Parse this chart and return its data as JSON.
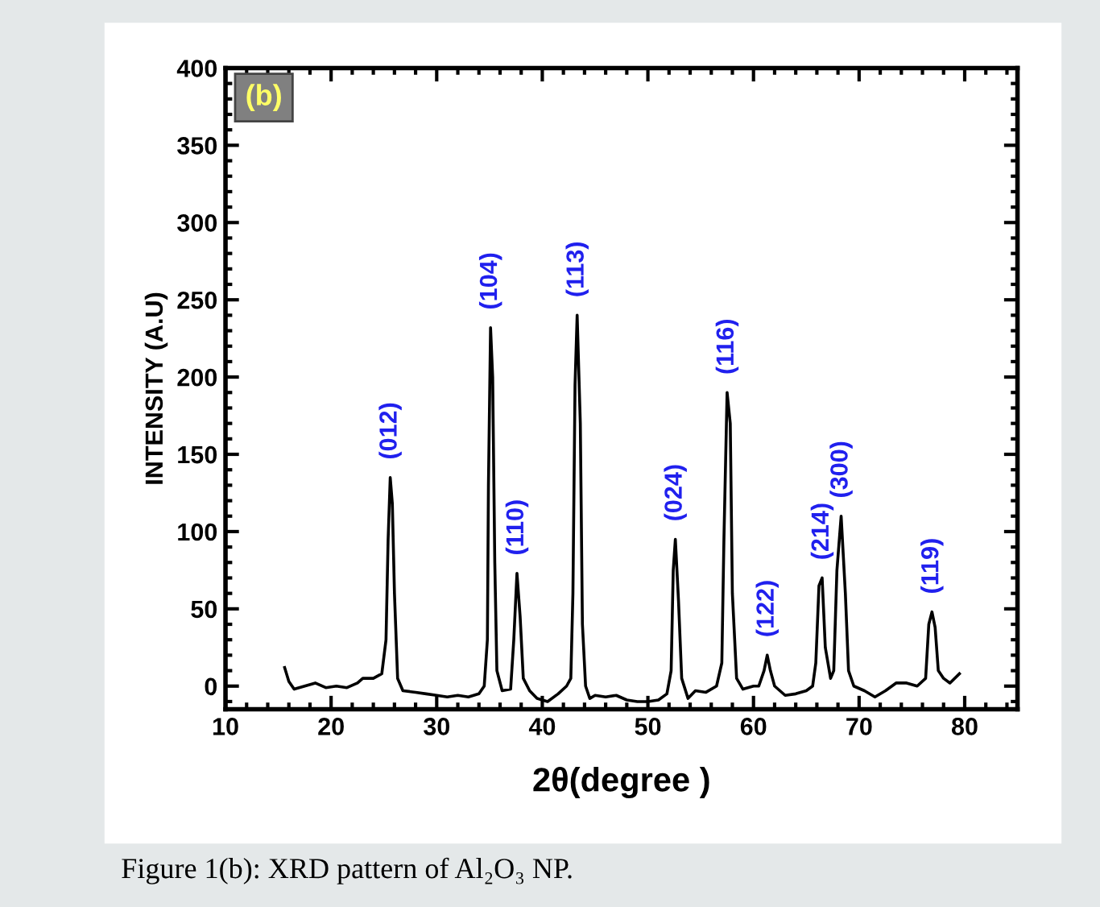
{
  "chart_data": {
    "type": "line",
    "xlabel": "2θ(degree )",
    "ylabel": "INTENSITY (A.U)",
    "xlim": [
      10,
      85
    ],
    "ylim": [
      -15,
      400
    ],
    "xticks": [
      10,
      20,
      30,
      40,
      50,
      60,
      70,
      80
    ],
    "yticks": [
      0,
      50,
      100,
      150,
      200,
      250,
      300,
      350,
      400
    ],
    "grid": false,
    "legend": false,
    "marker": "none",
    "line_style": "solid",
    "series": [
      {
        "color": "#000000",
        "x": [
          15.6,
          16.0,
          16.5,
          17.5,
          18.5,
          19.5,
          20.5,
          21.5,
          22.5,
          23.0,
          24.0,
          24.8,
          25.2,
          25.4,
          25.6,
          25.8,
          26.0,
          26.3,
          26.8,
          28,
          29,
          30,
          31,
          32,
          33,
          34,
          34.5,
          34.8,
          34.9,
          35.1,
          35.3,
          35.5,
          35.7,
          36.2,
          37.0,
          37.3,
          37.6,
          37.9,
          38.2,
          38.8,
          39.5,
          40.5,
          41.5,
          42.3,
          42.7,
          42.9,
          43.1,
          43.3,
          43.6,
          43.8,
          44.1,
          44.5,
          45,
          46,
          47,
          48,
          49,
          50,
          51,
          51.8,
          52.2,
          52.4,
          52.6,
          52.9,
          53.2,
          53.8,
          54.5,
          55.5,
          56.5,
          57.0,
          57.2,
          57.5,
          57.8,
          58.0,
          58.4,
          59,
          60,
          60.5,
          61.0,
          61.3,
          61.6,
          62,
          62.5,
          63,
          64,
          65,
          65.6,
          65.9,
          66.2,
          66.5,
          66.8,
          67.3,
          67.6,
          67.9,
          68.3,
          68.7,
          69.0,
          69.5,
          70.5,
          71.5,
          72.5,
          73.5,
          74.5,
          75.5,
          76.3,
          76.6,
          76.9,
          77.2,
          77.5,
          78,
          78.6,
          79.5
        ],
        "values": [
          12,
          3,
          -2,
          0,
          2,
          -1,
          0,
          -1,
          2,
          5,
          5,
          8,
          30,
          95,
          135,
          118,
          60,
          5,
          -3,
          -4,
          -5,
          -6,
          -7,
          -6,
          -7,
          -5,
          0,
          30,
          130,
          232,
          200,
          80,
          10,
          -3,
          -2,
          30,
          73,
          45,
          5,
          -3,
          -8,
          -10,
          -5,
          0,
          5,
          60,
          195,
          240,
          170,
          40,
          0,
          -8,
          -6,
          -7,
          -6,
          -9,
          -10,
          -10,
          -9,
          -5,
          10,
          75,
          95,
          55,
          5,
          -8,
          -3,
          -4,
          0,
          15,
          95,
          190,
          170,
          60,
          5,
          -2,
          0,
          0,
          10,
          20,
          10,
          0,
          -3,
          -6,
          -5,
          -3,
          0,
          15,
          65,
          70,
          25,
          5,
          10,
          75,
          110,
          60,
          10,
          0,
          -3,
          -7,
          -3,
          2,
          2,
          0,
          5,
          40,
          48,
          38,
          10,
          5,
          2,
          8
        ]
      }
    ],
    "annotations": [
      "(b)",
      "Figure 1(b): XRD pattern of Al₂O₃ NP.",
      {
        "text": "(012)",
        "x": 25.6,
        "y": 135
      },
      {
        "text": "(104)",
        "x": 35.1,
        "y": 232
      },
      {
        "text": "(110)",
        "x": 37.6,
        "y": 73
      },
      {
        "text": "(113)",
        "x": 43.3,
        "y": 240
      },
      {
        "text": "(024)",
        "x": 52.6,
        "y": 95
      },
      {
        "text": "(116)",
        "x": 57.5,
        "y": 190
      },
      {
        "text": "(122)",
        "x": 61.3,
        "y": 20
      },
      {
        "text": "(214)",
        "x": 66.5,
        "y": 70
      },
      {
        "text": "(300)",
        "x": 68.3,
        "y": 110
      },
      {
        "text": "(119)",
        "x": 76.9,
        "y": 48
      }
    ]
  }
}
